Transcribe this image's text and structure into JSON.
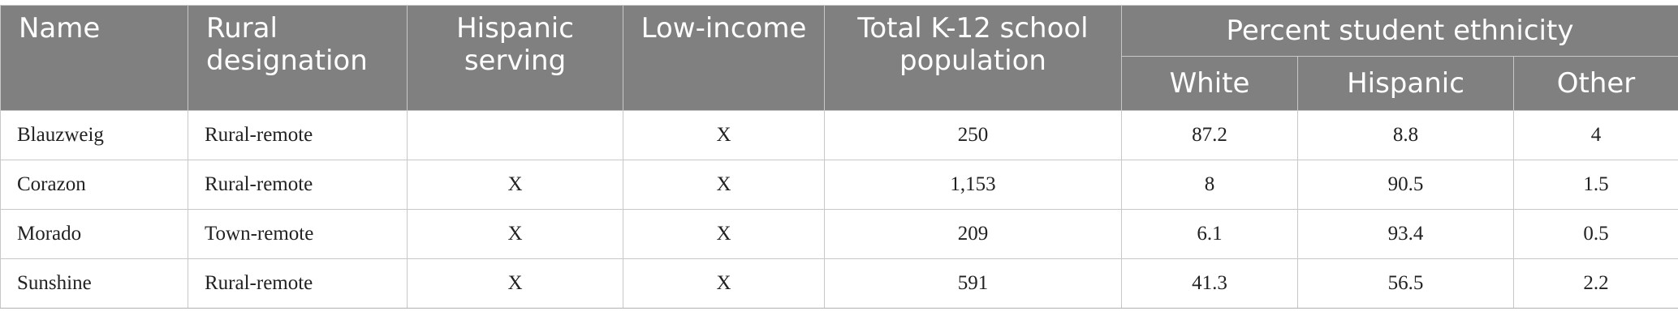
{
  "table": {
    "headers": {
      "name": "Name",
      "rural_designation": "Rural designation",
      "hispanic_serving": "Hispanic serving",
      "low_income": "Low-income",
      "total_population": "Total K-12 school population",
      "ethnicity_group": "Percent student ethnicity",
      "white": "White",
      "hispanic": "Hispanic",
      "other": "Other"
    },
    "rows": [
      {
        "name": "Blauzweig",
        "rural_designation": "Rural-remote",
        "hispanic_serving": "",
        "low_income": "X",
        "total_population": "250",
        "white": "87.2",
        "hispanic": "8.8",
        "other": "4"
      },
      {
        "name": "Corazon",
        "rural_designation": "Rural-remote",
        "hispanic_serving": "X",
        "low_income": "X",
        "total_population": "1,153",
        "white": "8",
        "hispanic": "90.5",
        "other": "1.5"
      },
      {
        "name": "Morado",
        "rural_designation": "Town-remote",
        "hispanic_serving": "X",
        "low_income": "X",
        "total_population": "209",
        "white": "6.1",
        "hispanic": "93.4",
        "other": "0.5"
      },
      {
        "name": "Sunshine",
        "rural_designation": "Rural-remote",
        "hispanic_serving": "X",
        "low_income": "X",
        "total_population": "591",
        "white": "41.3",
        "hispanic": "56.5",
        "other": "2.2"
      }
    ]
  }
}
